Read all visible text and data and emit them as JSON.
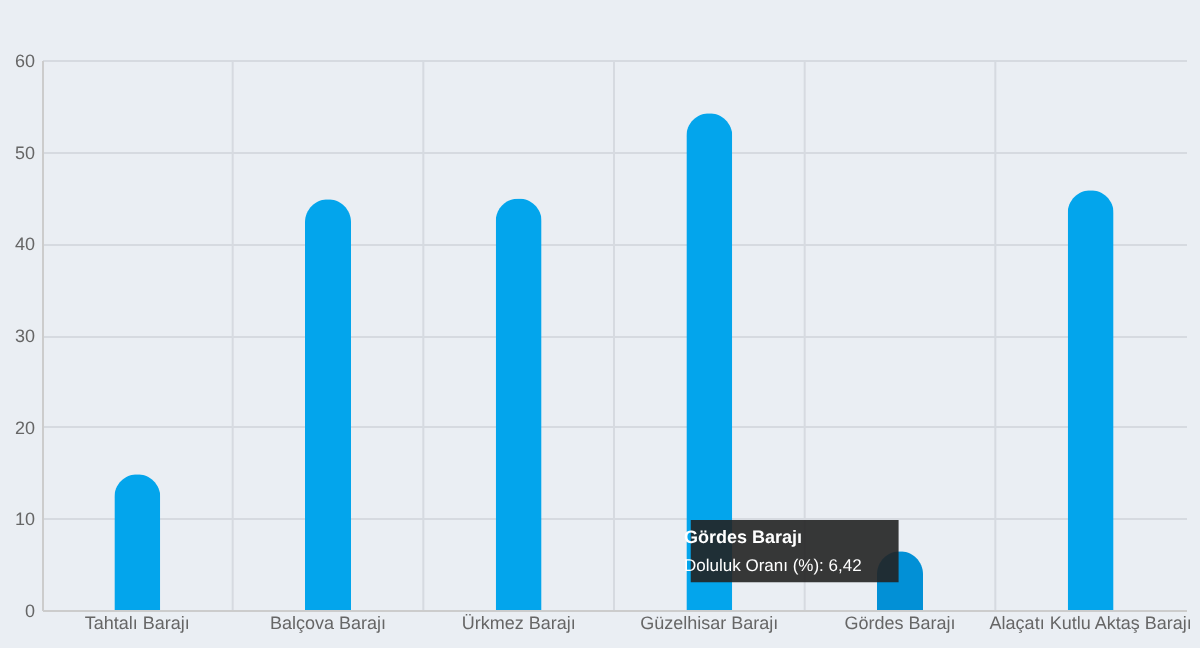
{
  "chart_data": {
    "type": "bar",
    "categories": [
      "Tahtalı Barajı",
      "Balçova Barajı",
      "Ürkmez Barajı",
      "Güzelhisar Barajı",
      "Gördes Barajı",
      "Alaçatı Kutlu Aktaş Barajı"
    ],
    "values": [
      14.8,
      44.8,
      44.9,
      54.2,
      6.42,
      45.8
    ],
    "colors": [
      "#03a5ec",
      "#03a5ec",
      "#03a5ec",
      "#03a5ec",
      "#0290d6",
      "#03a5ec"
    ],
    "ylim": [
      0,
      60
    ],
    "yticks": [
      0,
      10,
      20,
      30,
      40,
      50,
      60
    ],
    "grid": true,
    "annotations": [
      "Gördes Barajı",
      {
        "text": "Doluluk Oranı (%): 6,42",
        "x": "Gördes Barajı",
        "y": 6.42
      }
    ]
  }
}
